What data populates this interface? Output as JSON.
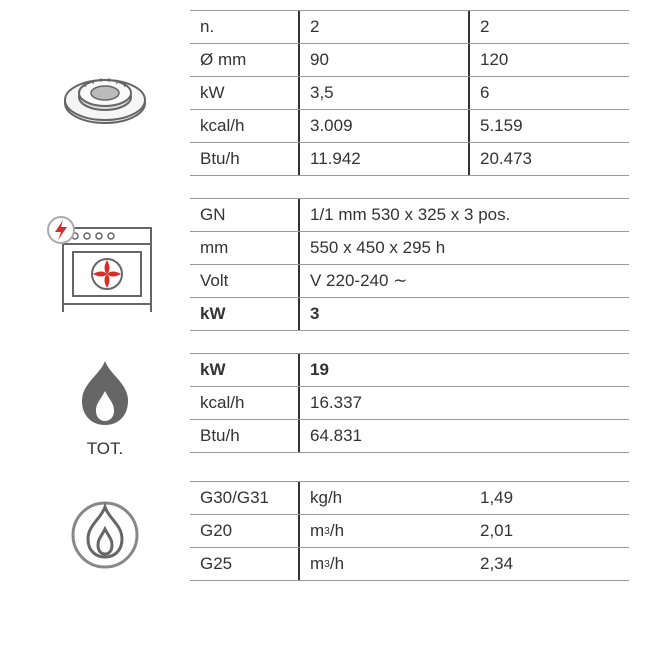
{
  "burner": {
    "rows": [
      {
        "label": "n.",
        "v1": "2",
        "v2": "2",
        "bold": false
      },
      {
        "label": "Ø mm",
        "v1": "90",
        "v2": "120",
        "bold": false
      },
      {
        "label": "kW",
        "v1": "3,5",
        "v2": "6",
        "bold": false
      },
      {
        "label": "kcal/h",
        "v1": "3.009",
        "v2": "5.159",
        "bold": false
      },
      {
        "label": "Btu/h",
        "v1": "11.942",
        "v2": "20.473",
        "bold": false
      }
    ]
  },
  "oven": {
    "rows": [
      {
        "label": "GN",
        "value": "1/1   mm 530 x 325 x 3 pos.",
        "bold": false
      },
      {
        "label": "mm",
        "value": "550 x 450 x 295 h",
        "bold": false
      },
      {
        "label": "Volt",
        "value": "V 220-240 ∼",
        "bold": false
      },
      {
        "label": "kW",
        "value": "3",
        "bold": true
      }
    ]
  },
  "total": {
    "caption": "TOT.",
    "rows": [
      {
        "label": "kW",
        "value": "19",
        "bold": true
      },
      {
        "label": "kcal/h",
        "value": "16.337",
        "bold": false
      },
      {
        "label": "Btu/h",
        "value": "64.831",
        "bold": false
      }
    ]
  },
  "gas": {
    "rows": [
      {
        "label": "G30/G31",
        "unit": "kg/h",
        "value": "1,49"
      },
      {
        "label": "G20",
        "unit": "m³/h",
        "value": "2,01"
      },
      {
        "label": "G25",
        "unit": "m³/h",
        "value": "2,34"
      }
    ]
  },
  "colors": {
    "line": "#999999",
    "line_dark": "#333333",
    "text": "#333333",
    "red": "#d82b2b",
    "icon_stroke": "#777777",
    "icon_fill": "#f3f3f3"
  }
}
